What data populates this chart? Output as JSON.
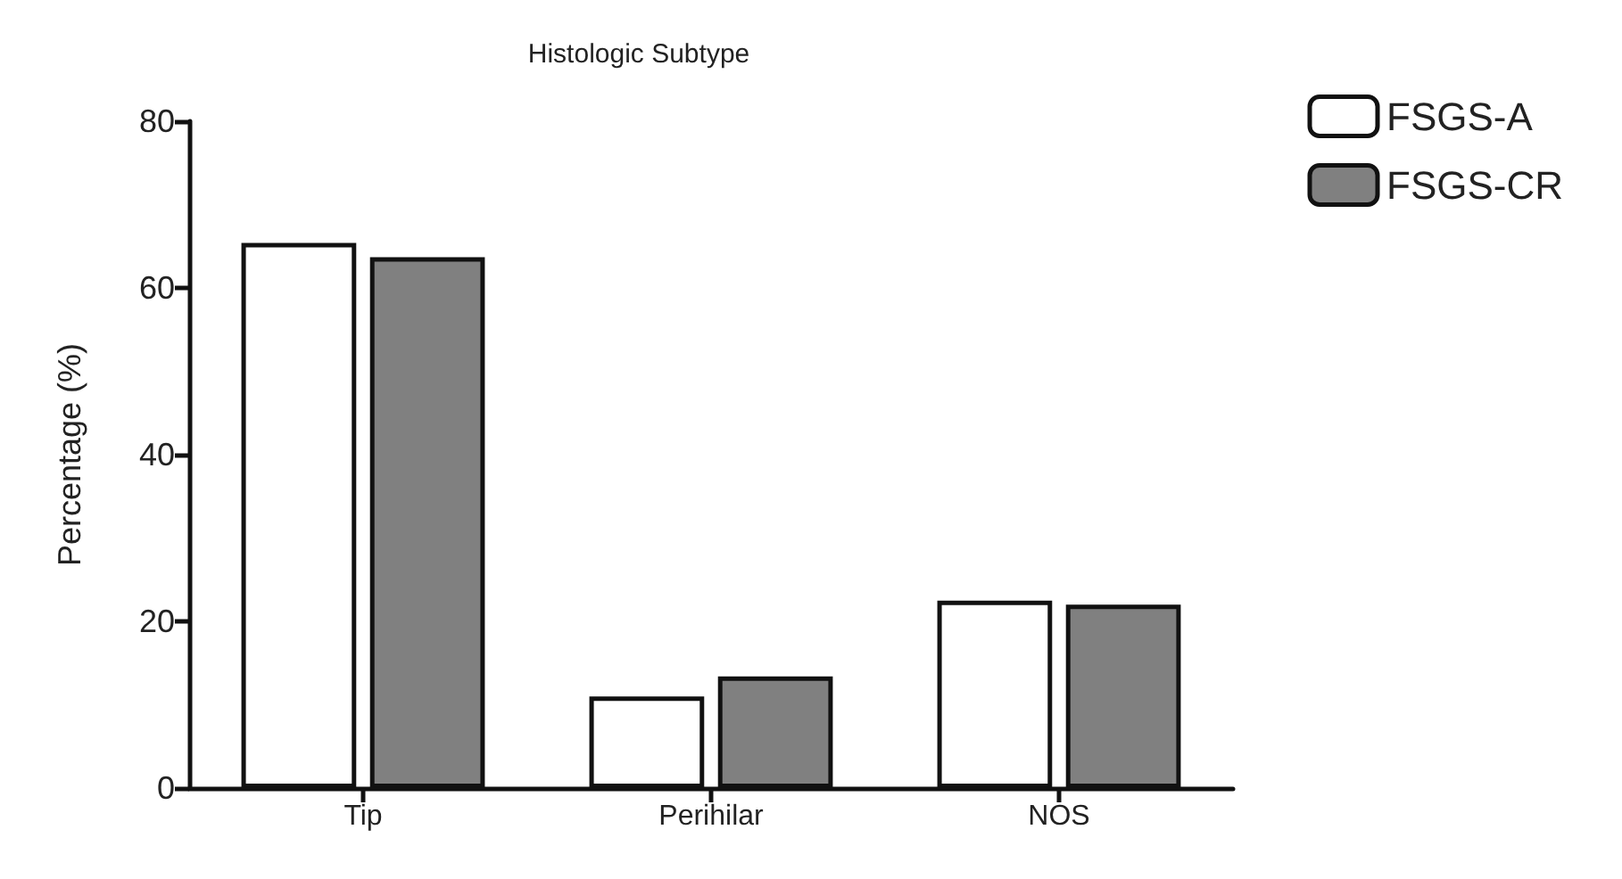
{
  "chart_data": {
    "type": "bar",
    "title": "Histologic Subtype",
    "ylabel": "Percentage (%)",
    "categories": [
      "Tip",
      "Perihilar",
      "NOS"
    ],
    "series": [
      {
        "name": "FSGS-A",
        "color": "#ffffff",
        "values": [
          65.4,
          11.0,
          22.5
        ]
      },
      {
        "name": "FSGS-CR",
        "color": "#808080",
        "values": [
          63.7,
          13.4,
          22.0
        ]
      }
    ],
    "ylim": [
      0,
      80
    ],
    "yticks": [
      0,
      20,
      40,
      60,
      80
    ],
    "grid": false,
    "legend": "top right"
  }
}
